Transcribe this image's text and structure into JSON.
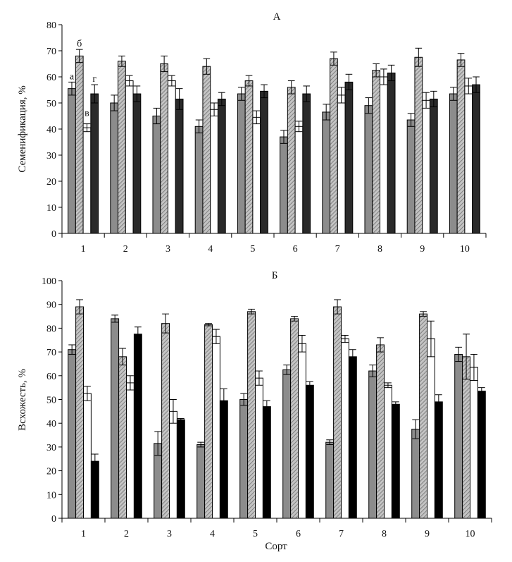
{
  "figure": {
    "xlabel": "Сорт"
  },
  "chart_data": [
    {
      "type": "bar",
      "title": "А",
      "ylabel": "Семенификация, %",
      "ylim": [
        0,
        80
      ],
      "yticks": [
        0,
        10,
        20,
        30,
        40,
        50,
        60,
        70,
        80
      ],
      "categories": [
        "1",
        "2",
        "3",
        "4",
        "5",
        "6",
        "7",
        "8",
        "9",
        "10"
      ],
      "series_labels": [
        "а",
        "б",
        "в",
        "г"
      ],
      "colors": [
        "#8c8c8c",
        "#b8b8b8",
        "#ffffff",
        "#2a2a2a"
      ],
      "series": [
        {
          "values": [
            55.5,
            50,
            45,
            41,
            53.5,
            37,
            46.5,
            49,
            43.5,
            53.5
          ],
          "errors": [
            2.5,
            3,
            3,
            2.5,
            2.5,
            2.5,
            3,
            3,
            2.5,
            2.5
          ]
        },
        {
          "values": [
            68,
            66,
            65,
            64,
            58.5,
            56,
            67,
            62.5,
            67.5,
            66.5
          ],
          "errors": [
            2.5,
            2,
            3,
            3,
            2,
            2.5,
            2.5,
            2.5,
            3.5,
            2.5
          ]
        },
        {
          "values": [
            40.5,
            58.5,
            58.5,
            47.5,
            44.5,
            41,
            53,
            60,
            51,
            56.5
          ],
          "errors": [
            1.5,
            2,
            2,
            2.5,
            2.5,
            2,
            3,
            3,
            3,
            3
          ]
        },
        {
          "values": [
            53.5,
            53.5,
            51.5,
            51.5,
            54.5,
            53.5,
            58,
            61.5,
            51.5,
            57
          ],
          "errors": [
            3.5,
            3,
            4,
            2.5,
            2.5,
            3,
            3,
            3,
            3,
            3
          ]
        }
      ]
    },
    {
      "type": "bar",
      "title": "Б",
      "ylabel": "Всхожесть, %",
      "ylim": [
        0,
        100
      ],
      "yticks": [
        0,
        10,
        20,
        30,
        40,
        50,
        60,
        70,
        80,
        90,
        100
      ],
      "categories": [
        "1",
        "2",
        "3",
        "4",
        "5",
        "6",
        "7",
        "8",
        "9",
        "10"
      ],
      "colors": [
        "#8c8c8c",
        "#b8b8b8",
        "#ffffff",
        "#000000"
      ],
      "series": [
        {
          "values": [
            71,
            84,
            31.5,
            31,
            50,
            62.5,
            32,
            62,
            37.5,
            69
          ],
          "errors": [
            2,
            1.5,
            5,
            1,
            2.5,
            2,
            1,
            2.5,
            4,
            3
          ]
        },
        {
          "values": [
            89,
            68,
            82,
            81.5,
            87,
            84,
            89,
            73,
            86,
            68
          ],
          "errors": [
            3,
            3.5,
            4,
            0.5,
            1,
            1,
            3,
            3,
            1,
            9.5
          ]
        },
        {
          "values": [
            52.5,
            57,
            45,
            76.5,
            59,
            73.5,
            75.5,
            56,
            75.5,
            63.5
          ],
          "errors": [
            3,
            3,
            5,
            3,
            3,
            3.5,
            1.5,
            1,
            7.5,
            5.5
          ]
        },
        {
          "values": [
            24,
            77.5,
            41.5,
            49.5,
            47,
            56,
            68,
            48,
            49,
            53.5
          ],
          "errors": [
            3,
            3,
            0.5,
            5,
            2.5,
            1.5,
            3,
            1,
            3,
            1.5
          ]
        }
      ]
    }
  ]
}
